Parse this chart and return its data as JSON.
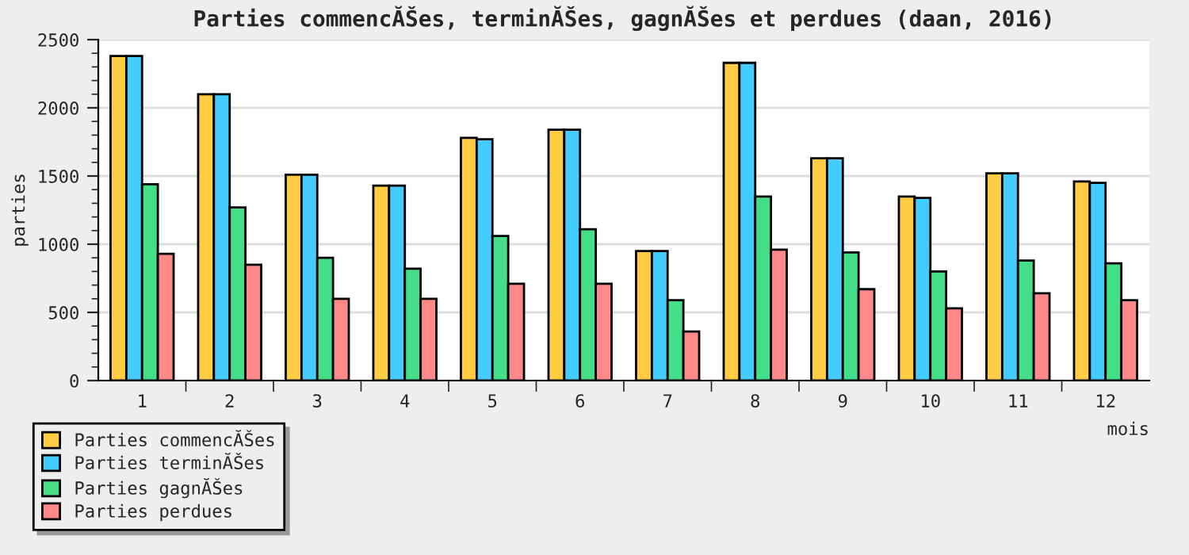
{
  "chart_data": {
    "type": "bar",
    "title": "Parties commencĂŠes, terminĂŠes, gagnĂŠes et perdues (daan, 2016)",
    "xlabel": "mois",
    "ylabel": "parties",
    "categories": [
      "1",
      "2",
      "3",
      "4",
      "5",
      "6",
      "7",
      "8",
      "9",
      "10",
      "11",
      "12"
    ],
    "series": [
      {
        "name": "Parties commencĂŠes",
        "color": "#ffcc44",
        "values": [
          2380,
          2100,
          1510,
          1430,
          1780,
          1840,
          950,
          2330,
          1630,
          1350,
          1520,
          1460
        ]
      },
      {
        "name": "Parties terminĂŠes",
        "color": "#44ccff",
        "values": [
          2380,
          2100,
          1510,
          1430,
          1770,
          1840,
          950,
          2330,
          1630,
          1340,
          1520,
          1450
        ]
      },
      {
        "name": "Parties gagnĂŠes",
        "color": "#44dd88",
        "values": [
          1440,
          1270,
          900,
          820,
          1060,
          1110,
          590,
          1350,
          940,
          800,
          880,
          860
        ]
      },
      {
        "name": "Parties perdues",
        "color": "#ff8888",
        "values": [
          930,
          850,
          600,
          600,
          710,
          710,
          360,
          960,
          670,
          530,
          640,
          590
        ]
      }
    ],
    "ylim": [
      0,
      2500
    ],
    "yticks": [
      0,
      500,
      1000,
      1500,
      2000,
      2500
    ],
    "grid": "y",
    "legend": "bottom left"
  }
}
